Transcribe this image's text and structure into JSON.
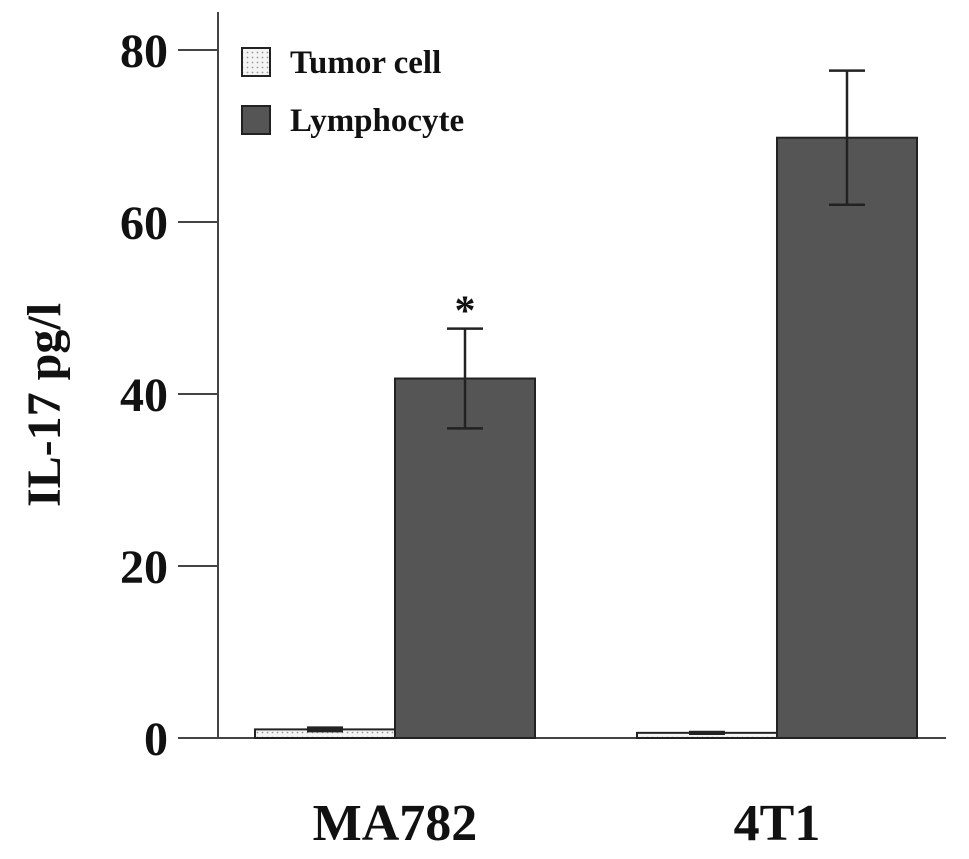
{
  "chart_data": {
    "type": "bar",
    "title": "",
    "xlabel": "",
    "ylabel": "IL-17 pg/l",
    "categories": [
      "MA782",
      "4T1"
    ],
    "ylim": [
      0,
      80
    ],
    "yticks": [
      0,
      20,
      40,
      60,
      80
    ],
    "grid": false,
    "legend_position": "top-left",
    "series": [
      {
        "name": "Tumor cell",
        "values": [
          1.0,
          0.6
        ],
        "errors": [
          0.2,
          0.1
        ],
        "color": "#eeeeee",
        "pattern": "dotted"
      },
      {
        "name": "Lymphocyte",
        "values": [
          41.8,
          69.8
        ],
        "errors": [
          5.8,
          7.8
        ],
        "color": "#555555",
        "pattern": "solid"
      }
    ],
    "annotations": [
      {
        "text": "*",
        "category": "MA782",
        "series": "Lymphocyte"
      }
    ]
  }
}
